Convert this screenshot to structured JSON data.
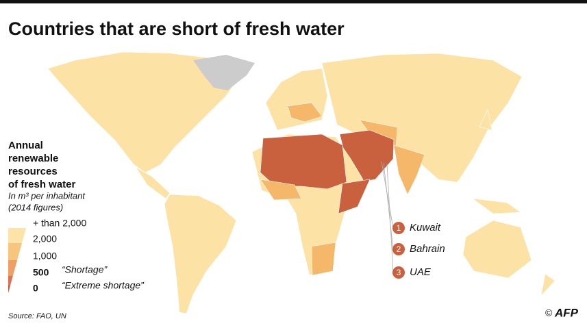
{
  "title": "Countries that are short of fresh water",
  "legend": {
    "title": [
      "Annual",
      "renewable",
      "resources",
      "of fresh water"
    ],
    "subtitle": [
      "In m³ per inhabitant",
      "(2014 figures)"
    ],
    "levels": [
      "+ than 2,000",
      "2,000",
      "1,000",
      "500",
      "0"
    ],
    "notes": [
      "“Shortage”",
      "“Extreme shortage”"
    ],
    "colors": [
      "#fde3a7",
      "#f7c67e",
      "#ee9f67",
      "#dc7355",
      "#c85a3e"
    ]
  },
  "callouts": [
    {
      "number": "1",
      "label": "Kuwait"
    },
    {
      "number": "2",
      "label": "Bahrain"
    },
    {
      "number": "3",
      "label": "UAE"
    }
  ],
  "source": "Source: FAO, UN",
  "credit": "©",
  "logo": "AFP"
}
